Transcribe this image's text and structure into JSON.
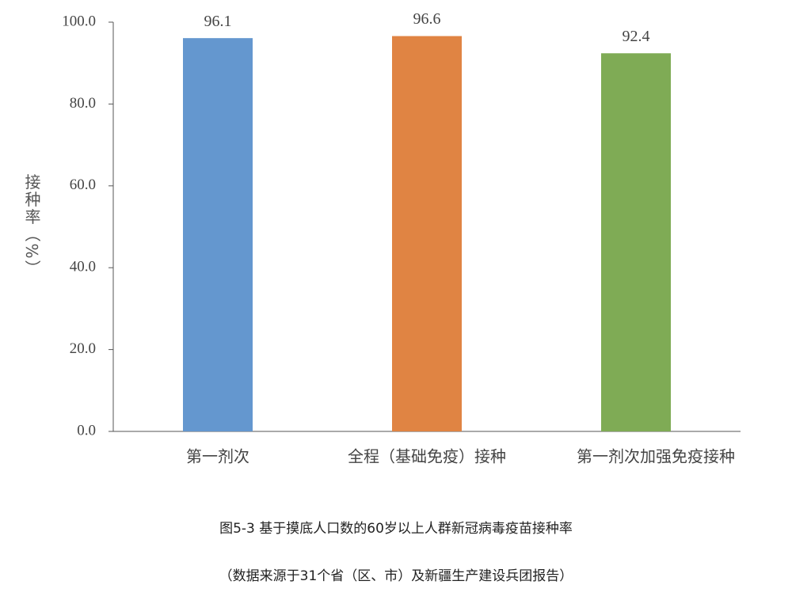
{
  "chart_data": {
    "type": "bar",
    "title": "图5-3  基于摸底人口数的60岁以上人群新冠病毒疫苗接种率",
    "subtitle": "（数据来源于31个省（区、市）及新疆生产建设兵团报告）",
    "y_label": "接种率（%）",
    "categories": [
      "第一剂次",
      "全程（基础免疫）接种",
      "第一剂次加强免疫接种"
    ],
    "values": [
      96.1,
      96.6,
      92.4
    ],
    "colors": [
      "#6497cf",
      "#e08443",
      "#7fab55"
    ],
    "ylim": [
      0,
      100
    ],
    "yticks": [
      {
        "value": 0,
        "label": "0.0"
      },
      {
        "value": 20,
        "label": "20.0"
      },
      {
        "value": 40,
        "label": "40.0"
      },
      {
        "value": 60,
        "label": "60.0"
      },
      {
        "value": 80,
        "label": "80.0"
      },
      {
        "value": 100,
        "label": "100.0"
      }
    ],
    "grid": false
  }
}
